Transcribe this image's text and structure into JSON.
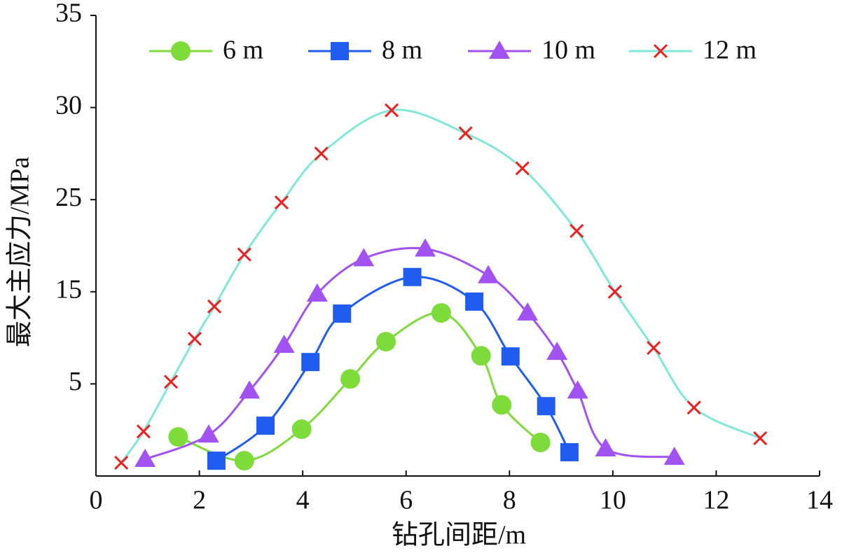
{
  "chart_data": {
    "type": "line",
    "xlabel": "钻孔间距/m",
    "ylabel": "最大主应力/MPa",
    "xlim": [
      0,
      14
    ],
    "xticks": [
      0,
      2,
      4,
      6,
      8,
      10,
      12,
      14
    ],
    "ylim": [
      0,
      35
    ],
    "yticks": [
      5,
      15,
      25,
      30,
      35
    ],
    "legend": "top",
    "series": [
      {
        "name": "6 m",
        "color": "#7ddc3a",
        "marker": "circle",
        "x": [
          1.59,
          2.87,
          3.98,
          4.92,
          5.61,
          6.68,
          7.45,
          7.85,
          8.6
        ],
        "values": [
          2.12,
          0.83,
          2.54,
          5.53,
          9.58,
          12.7,
          8.05,
          3.86,
          1.82
        ]
      },
      {
        "name": "8 m",
        "color": "#1f5cef",
        "marker": "square",
        "x": [
          2.33,
          3.28,
          4.15,
          4.76,
          6.12,
          7.32,
          8.02,
          8.71,
          9.16
        ],
        "values": [
          0.83,
          2.73,
          7.37,
          12.63,
          16.6,
          13.93,
          7.98,
          3.79,
          1.29
        ]
      },
      {
        "name": "10 m",
        "color": "#a152f0",
        "marker": "triangle",
        "x": [
          0.95,
          2.18,
          2.97,
          3.64,
          4.28,
          5.18,
          6.37,
          7.59,
          8.35,
          8.92,
          9.32,
          9.86,
          11.19
        ],
        "values": [
          0.91,
          2.23,
          4.62,
          9.2,
          14.77,
          18.6,
          19.66,
          16.76,
          12.71,
          8.44,
          4.62,
          1.48,
          1.02
        ]
      },
      {
        "name": "12 m",
        "color": "#80e8d8",
        "marker": "cross",
        "marker_color": "#ee2020",
        "x": [
          0.49,
          0.92,
          1.45,
          1.91,
          2.29,
          2.87,
          3.59,
          4.36,
          5.72,
          7.15,
          8.25,
          9.3,
          10.04,
          10.79,
          11.57,
          12.85
        ],
        "values": [
          0.72,
          2.42,
          5.23,
          9.89,
          13.4,
          19.05,
          24.7,
          27.5,
          29.85,
          28.6,
          26.7,
          21.6,
          15.0,
          8.9,
          3.71,
          2.05
        ]
      }
    ]
  }
}
